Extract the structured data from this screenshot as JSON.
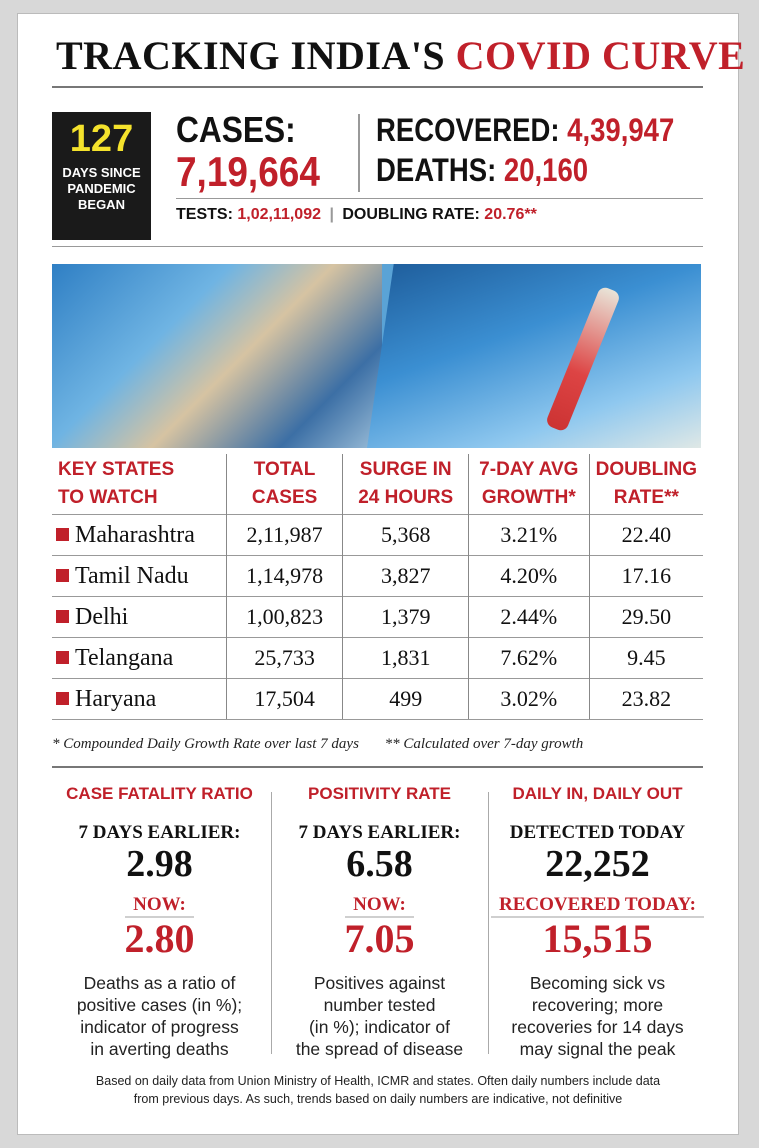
{
  "title": {
    "part1": "TRACKING INDIA'S",
    "part2": "COVID CURVE"
  },
  "days": {
    "value": "127",
    "label_line1": "DAYS SINCE",
    "label_line2": "PANDEMIC",
    "label_line3": "BEGAN"
  },
  "summary": {
    "cases_label": "CASES:",
    "cases_value": "7,19,664",
    "recovered_label": "RECOVERED:",
    "recovered_value": "4,39,947",
    "deaths_label": "DEATHS:",
    "deaths_value": "20,160",
    "tests_label": "TESTS:",
    "tests_value": "1,02,11,092",
    "doubling_label": "DOUBLING RATE:",
    "doubling_value": "20.76**"
  },
  "table": {
    "headers": [
      {
        "line1": "KEY STATES",
        "line2": "TO WATCH"
      },
      {
        "line1": "TOTAL",
        "line2": "CASES"
      },
      {
        "line1": "SURGE IN",
        "line2": "24 HOURS"
      },
      {
        "line1": "7-DAY AVG",
        "line2": "GROWTH*"
      },
      {
        "line1": "DOUBLING",
        "line2": "RATE**"
      }
    ],
    "rows": [
      {
        "state": "Maharashtra",
        "total": "2,11,987",
        "surge": "5,368",
        "growth": "3.21%",
        "doubling": "22.40"
      },
      {
        "state": "Tamil Nadu",
        "total": "1,14,978",
        "surge": "3,827",
        "growth": "4.20%",
        "doubling": "17.16"
      },
      {
        "state": "Delhi",
        "total": "1,00,823",
        "surge": "1,379",
        "growth": "2.44%",
        "doubling": "29.50"
      },
      {
        "state": "Telangana",
        "total": "25,733",
        "surge": "1,831",
        "growth": "7.62%",
        "doubling": "9.45"
      },
      {
        "state": "Haryana",
        "total": "17,504",
        "surge": "499",
        "growth": "3.02%",
        "doubling": "23.82"
      }
    ]
  },
  "footnotes": {
    "star1": "* Compounded Daily Growth Rate over last 7 days",
    "star2": "** Calculated over 7-day growth"
  },
  "metrics": [
    {
      "heading": "CASE FATALITY RATIO",
      "earlier_label": "7 DAYS EARLIER:",
      "earlier_value": "2.98",
      "now_label": "NOW:",
      "now_value": "2.80",
      "desc1": "Deaths as a ratio of",
      "desc2": "positive cases (in %);",
      "desc3": "indicator of progress",
      "desc4": "in averting deaths"
    },
    {
      "heading": "POSITIVITY RATE",
      "earlier_label": "7 DAYS EARLIER:",
      "earlier_value": "6.58",
      "now_label": "NOW:",
      "now_value": "7.05",
      "desc1": "Positives against",
      "desc2": "number tested",
      "desc3": "(in %); indicator of",
      "desc4": "the spread of disease"
    },
    {
      "heading": "DAILY IN, DAILY OUT",
      "earlier_label": "DETECTED TODAY",
      "earlier_value": "22,252",
      "now_label": "RECOVERED TODAY:",
      "now_value": "15,515",
      "desc1": "Becoming sick vs",
      "desc2": "recovering; more",
      "desc3": "recoveries for 14 days",
      "desc4": "may signal the peak"
    }
  ],
  "source": {
    "line1": "Based on daily data from Union Ministry of Health, ICMR and states. Often daily numbers include data",
    "line2": "from previous days. As such, trends based on daily numbers are indicative, not definitive"
  },
  "colors": {
    "accent": "#c0202a",
    "highlight": "#f4e22c",
    "dark": "#1a1a1a"
  }
}
